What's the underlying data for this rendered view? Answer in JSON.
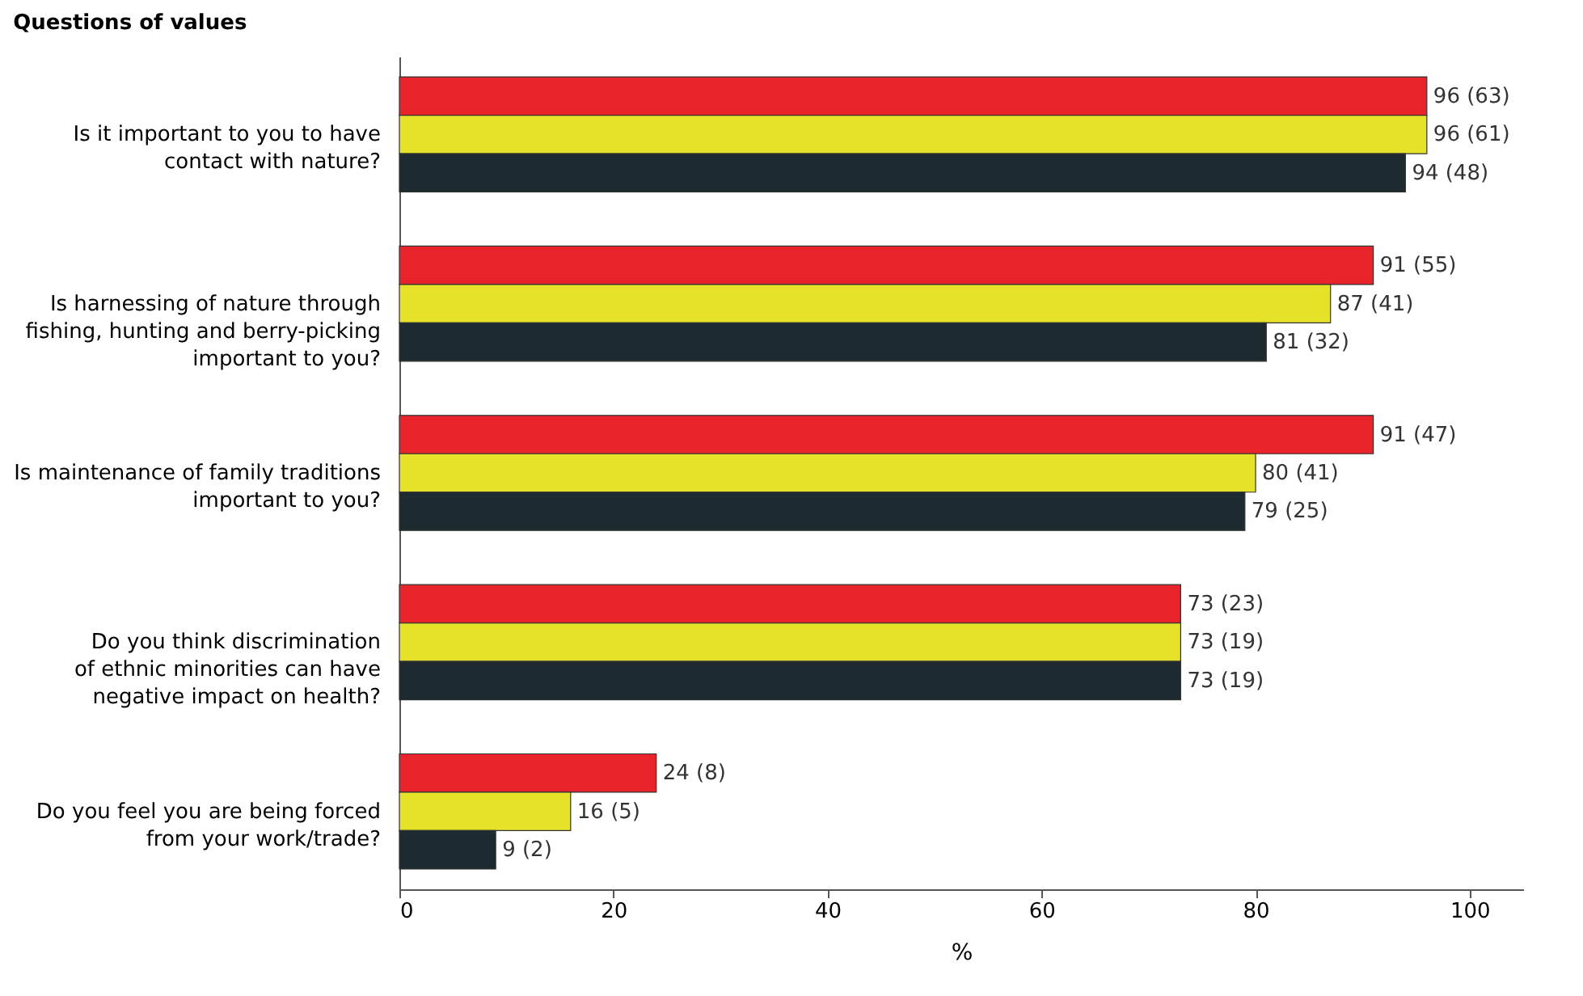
{
  "chart_data": {
    "type": "bar",
    "orientation": "horizontal",
    "title": "Questions of values",
    "xlabel": "%",
    "categories": [
      "Is it important to you to have\ncontact with nature?",
      "Is harnessing of nature through\nfishing, hunting and berry-picking\nimportant to you?",
      "Is maintenance of family traditions\nimportant to you?",
      "Do you think discrimination\nof ethnic minorities can have\nnegative impact on health?",
      "Do you feel you are being forced\nfrom your work/trade?"
    ],
    "series": [
      {
        "color": "#e8232a",
        "values": [
          96,
          91,
          91,
          73,
          24
        ],
        "value_labels": [
          "96 (63)",
          "91 (55)",
          "91 (47)",
          "73 (23)",
          "24 (8)"
        ]
      },
      {
        "color": "#e6e22a",
        "values": [
          96,
          87,
          80,
          73,
          16
        ],
        "value_labels": [
          "96 (61)",
          "87 (41)",
          "80 (41)",
          "73 (19)",
          "16 (5)"
        ]
      },
      {
        "color": "#1d2a30",
        "values": [
          94,
          81,
          79,
          73,
          9
        ],
        "value_labels": [
          "94 (48)",
          "81 (32)",
          "79 (25)",
          "73 (19)",
          "9 (2)"
        ]
      }
    ],
    "xlim": [
      0,
      105
    ],
    "xticks": [
      0,
      20,
      40,
      60,
      80,
      100
    ],
    "grid": false,
    "legend": false
  }
}
